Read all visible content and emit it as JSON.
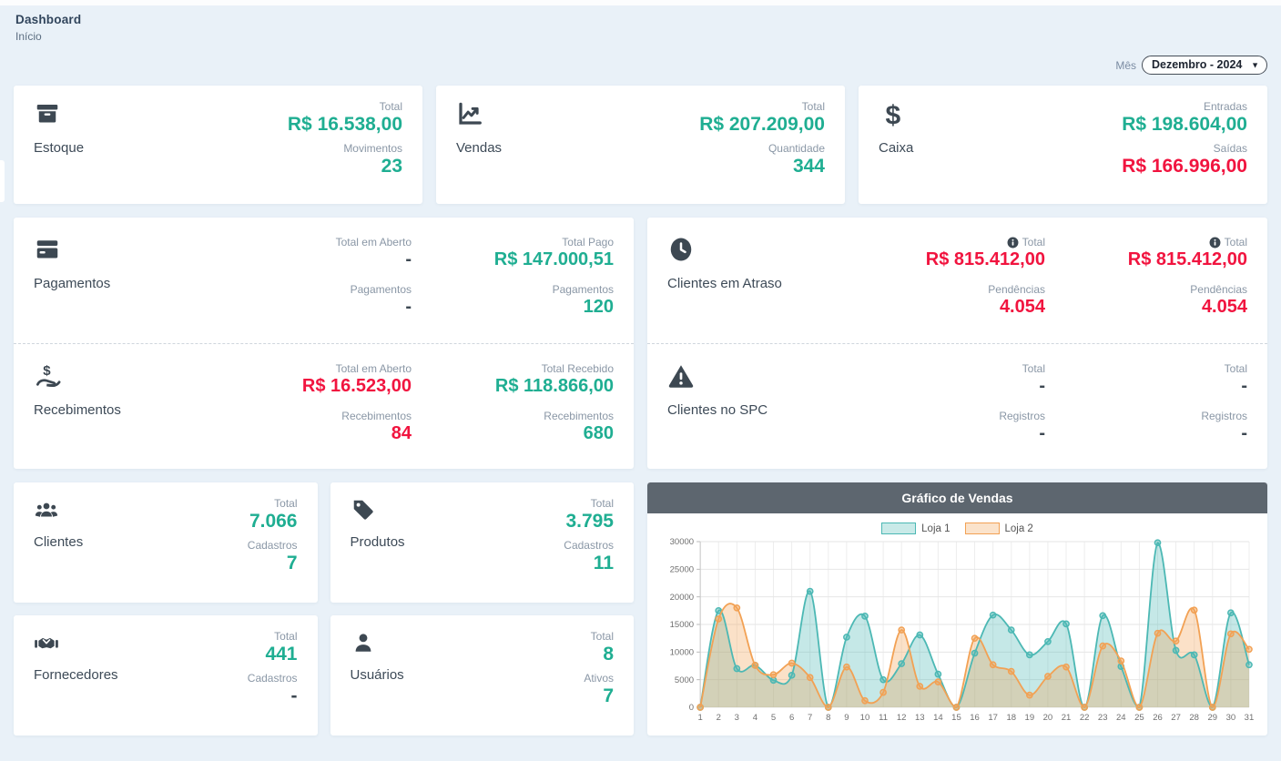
{
  "header": {
    "title": "Dashboard",
    "subtitle": "Início"
  },
  "filters": {
    "month_label": "Mês",
    "month_value": "Dezembro - 2024"
  },
  "colors": {
    "green": "#1fae92",
    "red": "#f1143f",
    "dark": "#3d4852",
    "header_bar": "#5d666f",
    "page_bg": "#e9f1f8"
  },
  "cards": {
    "estoque": {
      "title": "Estoque",
      "stats": [
        {
          "label": "Total",
          "value": "R$ 16.538,00",
          "tone": "green"
        },
        {
          "label": "Movimentos",
          "value": "23",
          "tone": "green"
        }
      ]
    },
    "vendas": {
      "title": "Vendas",
      "stats": [
        {
          "label": "Total",
          "value": "R$ 207.209,00",
          "tone": "green"
        },
        {
          "label": "Quantidade",
          "value": "344",
          "tone": "green"
        }
      ]
    },
    "caixa": {
      "title": "Caixa",
      "stats": [
        {
          "label": "Entradas",
          "value": "R$ 198.604,00",
          "tone": "green"
        },
        {
          "label": "Saídas",
          "value": "R$ 166.996,00",
          "tone": "red"
        }
      ]
    },
    "pagamentos": {
      "title": "Pagamentos",
      "col1": [
        {
          "label": "Total em Aberto",
          "value": "-",
          "tone": "dark"
        },
        {
          "label": "Pagamentos",
          "value": "-",
          "tone": "dark"
        }
      ],
      "col2": [
        {
          "label": "Total Pago",
          "value": "R$ 147.000,51",
          "tone": "green"
        },
        {
          "label": "Pagamentos",
          "value": "120",
          "tone": "green"
        }
      ]
    },
    "recebimentos": {
      "title": "Recebimentos",
      "col1": [
        {
          "label": "Total em Aberto",
          "value": "R$ 16.523,00",
          "tone": "red"
        },
        {
          "label": "Recebimentos",
          "value": "84",
          "tone": "red"
        }
      ],
      "col2": [
        {
          "label": "Total Recebido",
          "value": "R$ 118.866,00",
          "tone": "green"
        },
        {
          "label": "Recebimentos",
          "value": "680",
          "tone": "green"
        }
      ]
    },
    "clientes_atraso": {
      "title": "Clientes em Atraso",
      "col1": [
        {
          "label": "Total",
          "value": "R$ 815.412,00",
          "tone": "red"
        },
        {
          "label": "Pendências",
          "value": "4.054",
          "tone": "red"
        }
      ],
      "col2": [
        {
          "label": "Total",
          "value": "R$ 815.412,00",
          "tone": "red"
        },
        {
          "label": "Pendências",
          "value": "4.054",
          "tone": "red"
        }
      ]
    },
    "clientes_spc": {
      "title": "Clientes no SPC",
      "col1": [
        {
          "label": "Total",
          "value": "-",
          "tone": "dark"
        },
        {
          "label": "Registros",
          "value": "-",
          "tone": "dark"
        }
      ],
      "col2": [
        {
          "label": "Total",
          "value": "-",
          "tone": "dark"
        },
        {
          "label": "Registros",
          "value": "-",
          "tone": "dark"
        }
      ]
    },
    "clientes": {
      "title": "Clientes",
      "stats": [
        {
          "label": "Total",
          "value": "7.066",
          "tone": "green"
        },
        {
          "label": "Cadastros",
          "value": "7",
          "tone": "green"
        }
      ]
    },
    "produtos": {
      "title": "Produtos",
      "stats": [
        {
          "label": "Total",
          "value": "3.795",
          "tone": "green"
        },
        {
          "label": "Cadastros",
          "value": "11",
          "tone": "green"
        }
      ]
    },
    "fornecedores": {
      "title": "Fornecedores",
      "stats": [
        {
          "label": "Total",
          "value": "441",
          "tone": "green"
        },
        {
          "label": "Cadastros",
          "value": "-",
          "tone": "dark"
        }
      ]
    },
    "usuarios": {
      "title": "Usuários",
      "stats": [
        {
          "label": "Total",
          "value": "8",
          "tone": "green"
        },
        {
          "label": "Ativos",
          "value": "7",
          "tone": "green"
        }
      ]
    }
  },
  "chart_data": {
    "type": "area",
    "title": "Gráfico de Vendas",
    "x": [
      1,
      2,
      3,
      4,
      5,
      6,
      7,
      8,
      9,
      10,
      11,
      12,
      13,
      14,
      15,
      16,
      17,
      18,
      19,
      20,
      21,
      22,
      23,
      24,
      25,
      26,
      27,
      28,
      29,
      30,
      31
    ],
    "series": [
      {
        "name": "Loja 1",
        "color": "#4cb8b4",
        "values": [
          0,
          17500,
          7000,
          7600,
          4900,
          5800,
          21000,
          0,
          12700,
          16500,
          5000,
          7900,
          13100,
          6000,
          0,
          9800,
          16700,
          14000,
          9500,
          11900,
          15100,
          0,
          16600,
          7400,
          0,
          29800,
          10300,
          9500,
          0,
          17100,
          7700
        ]
      },
      {
        "name": "Loja 2",
        "color": "#f2a154",
        "values": [
          0,
          16000,
          18000,
          7600,
          5900,
          8000,
          5400,
          0,
          7300,
          1200,
          2700,
          14000,
          3800,
          4600,
          0,
          12500,
          7700,
          6500,
          2200,
          5600,
          7300,
          0,
          11100,
          8400,
          0,
          13400,
          12000,
          17600,
          0,
          13300,
          10500
        ]
      }
    ],
    "ylim": [
      0,
      30000
    ],
    "yticks": [
      0,
      5000,
      10000,
      15000,
      20000,
      25000,
      30000
    ],
    "grid": true,
    "legend_position": "top"
  }
}
